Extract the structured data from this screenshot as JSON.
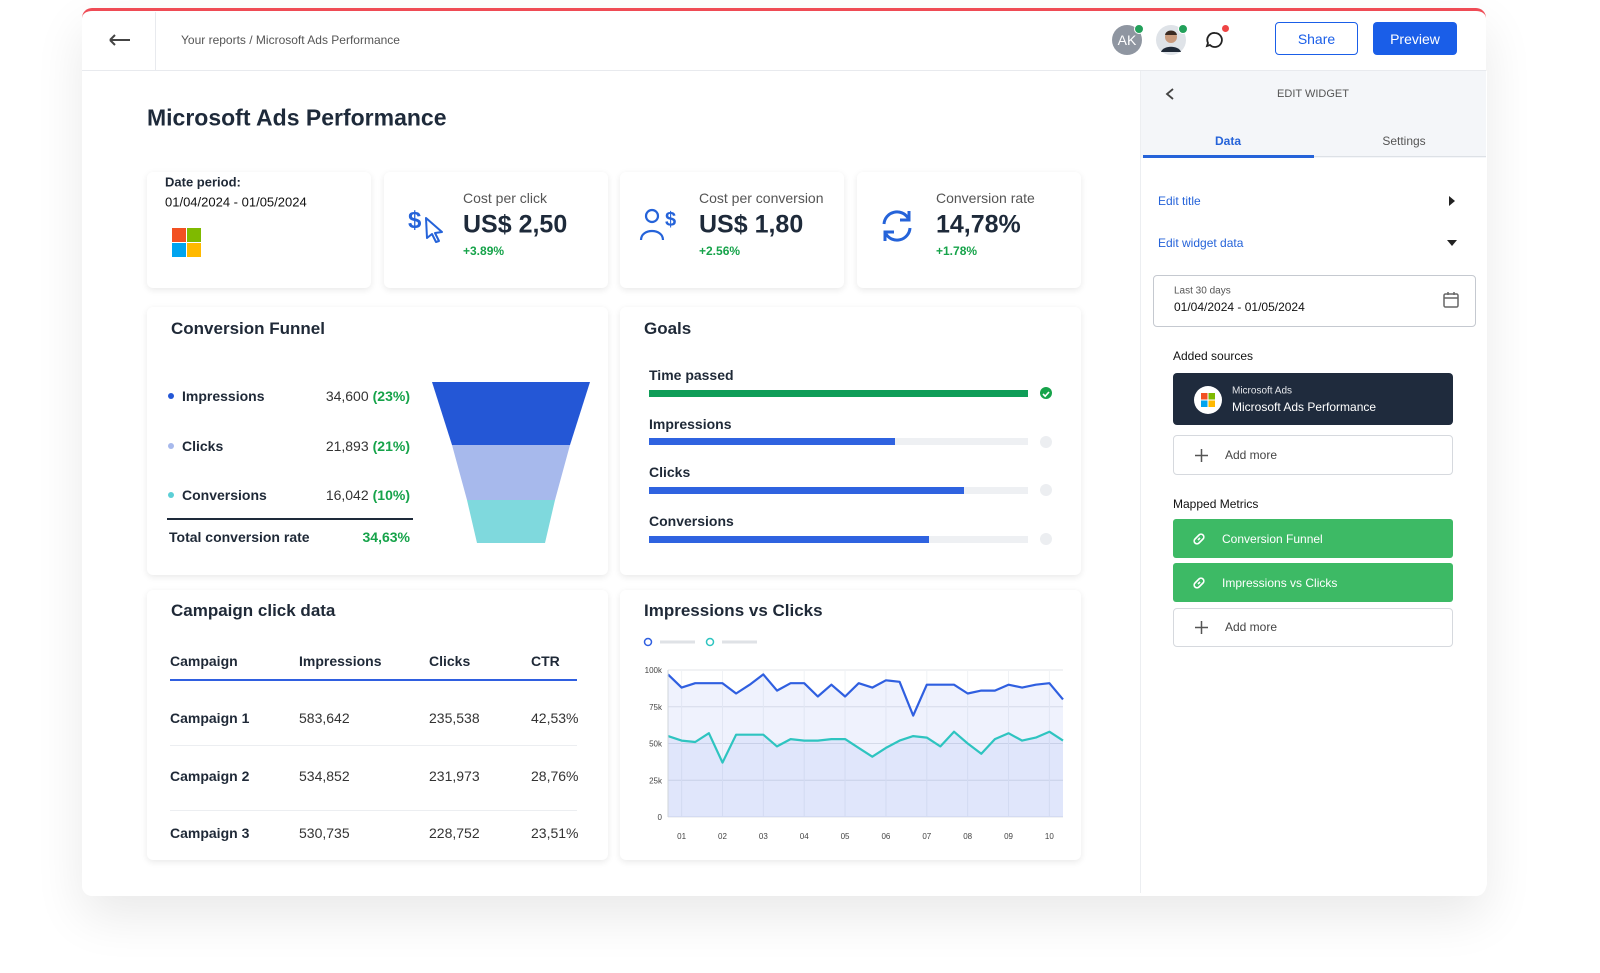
{
  "header": {
    "breadcrumb": "Your reports / Microsoft Ads Performance",
    "avatar_initials": "AK",
    "share": "Share",
    "preview": "Preview"
  },
  "report": {
    "title": "Microsoft Ads Performance",
    "date_period": {
      "label": "Date period:",
      "range": "01/04/2024 - 01/05/2024"
    },
    "kpis": [
      {
        "label": "Cost per click",
        "value": "US$ 2,50",
        "change": "+3.89%"
      },
      {
        "label": "Cost per conversion",
        "value": "US$ 1,80",
        "change": "+2.56%"
      },
      {
        "label": "Conversion rate",
        "value": "14,78%",
        "change": "+1.78%"
      }
    ],
    "funnel": {
      "title": "Conversion Funnel",
      "rows": [
        {
          "name": "Impressions",
          "value": "34,600",
          "share": "(23%)"
        },
        {
          "name": "Clicks",
          "value": "21,893",
          "share": "(21%)"
        },
        {
          "name": "Conversions",
          "value": "16,042",
          "share": "(10%)"
        }
      ],
      "total_label": "Total conversion rate",
      "total": "34,63%"
    },
    "goals": {
      "title": "Goals",
      "items": [
        {
          "name": "Time passed",
          "progress": 100
        },
        {
          "name": "Impressions",
          "progress": 65
        },
        {
          "name": "Clicks",
          "progress": 83
        },
        {
          "name": "Conversions",
          "progress": 74
        }
      ]
    },
    "table": {
      "title": "Campaign click data",
      "columns": [
        "Campaign",
        "Impressions",
        "Clicks",
        "CTR"
      ],
      "rows": [
        [
          "Campaign 1",
          "583,642",
          "235,538",
          "42,53%"
        ],
        [
          "Campaign 2",
          "534,852",
          "231,973",
          "28,76%"
        ],
        [
          "Campaign 3",
          "530,735",
          "228,752",
          "23,51%"
        ]
      ]
    }
  },
  "chart_data": {
    "type": "line",
    "title": "Impressions vs Clicks",
    "categories": [
      null,
      "01",
      null,
      null,
      "02",
      null,
      null,
      "03",
      null,
      null,
      "04",
      null,
      null,
      "05",
      null,
      null,
      "06",
      null,
      null,
      "07",
      null,
      null,
      "08",
      null,
      null,
      "09",
      null,
      null,
      "10",
      null
    ],
    "series": [
      {
        "color": "#2f5fe0",
        "values": [
          97000,
          88000,
          91000,
          91000,
          91000,
          84000,
          90000,
          97000,
          86000,
          91000,
          91000,
          82000,
          90000,
          82000,
          91000,
          88000,
          93000,
          92000,
          69000,
          90000,
          90000,
          90000,
          84000,
          86000,
          86000,
          90000,
          88000,
          90000,
          91000,
          80000
        ]
      },
      {
        "color": "#2ec4c0",
        "values": [
          55000,
          52000,
          51000,
          57000,
          37000,
          56000,
          56000,
          56000,
          48000,
          53000,
          52000,
          52000,
          53000,
          53000,
          47000,
          41000,
          47000,
          52000,
          55000,
          54000,
          48000,
          58000,
          50000,
          43000,
          53000,
          57000,
          52000,
          54000,
          58000,
          52000
        ]
      }
    ],
    "ylim": [
      0,
      100000
    ],
    "yticks": [
      0,
      {
        "value": 25000,
        "label": "25k"
      },
      {
        "value": 50000,
        "label": "50k"
      },
      {
        "value": 75000,
        "label": "75k"
      },
      {
        "value": 100000,
        "label": "100k"
      }
    ],
    "grid": true,
    "area": true
  },
  "edit_panel": {
    "heading": "EDIT WIDGET",
    "tabs": [
      "Data",
      "Settings"
    ],
    "edit_title": "Edit title",
    "edit_widget_data": "Edit widget data",
    "date_preset": "Last 30 days",
    "date_range": "01/04/2024 - 01/05/2024",
    "sources": {
      "label": "Added sources",
      "provider": "Microsoft Ads",
      "name": "Microsoft Ads Performance",
      "add": "Add more"
    },
    "metrics": {
      "label": "Mapped Metrics",
      "items": [
        "Conversion Funnel",
        "Impressions vs Clicks"
      ],
      "add": "Add more"
    }
  }
}
